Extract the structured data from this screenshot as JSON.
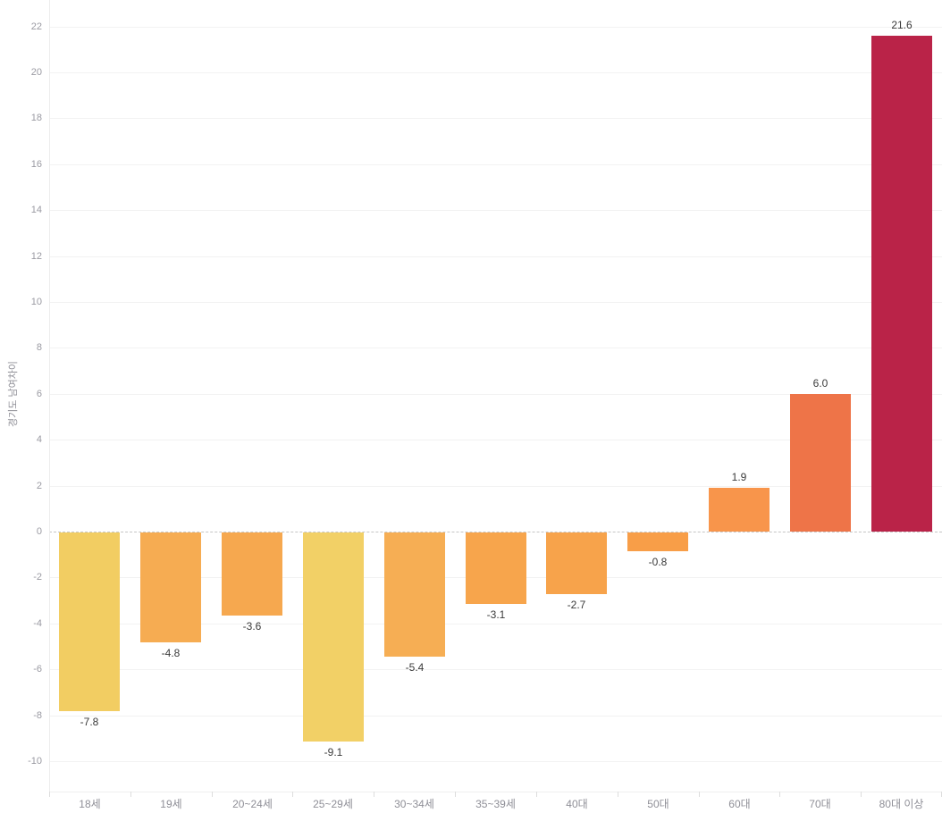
{
  "chart_data": {
    "type": "bar",
    "categories": [
      "18세",
      "19세",
      "20~24세",
      "25~29세",
      "30~34세",
      "35~39세",
      "40대",
      "50대",
      "60대",
      "70대",
      "80대 이상"
    ],
    "values": [
      -7.8,
      -4.8,
      -3.6,
      -9.1,
      -5.4,
      -3.1,
      -2.7,
      -0.8,
      1.9,
      6.0,
      21.6
    ],
    "value_labels": [
      "-7.8",
      "-4.8",
      "-3.6",
      "-9.1",
      "-5.4",
      "-3.1",
      "-2.7",
      "-0.8",
      "1.9",
      "6.0",
      "21.6"
    ],
    "bar_colors": [
      "#F2CD62",
      "#F6AC52",
      "#F6A84F",
      "#F2D066",
      "#F6AE54",
      "#F7A54C",
      "#F7A34B",
      "#F89E48",
      "#F8954B",
      "#EE7448",
      "#BA2348"
    ],
    "title": "",
    "xlabel": "",
    "ylabel": "경기도 남여차이",
    "ylim": [
      -10,
      22
    ],
    "ytick_step": 2,
    "yticks": [
      22,
      20,
      18,
      16,
      14,
      12,
      10,
      8,
      6,
      4,
      2,
      0,
      -2,
      -4,
      -6,
      -8,
      -10
    ],
    "grid": "on",
    "legend": "none",
    "colors": {
      "background": "#FFFFFF",
      "gridline": "#F2F2F2",
      "zero_line_dashed": "#C6C6C6",
      "axis_line": "#EDEDED",
      "ytick_text": "#9A9AA2",
      "xtick_text": "#8F8F97",
      "data_label_text": "#3A3A3A"
    }
  }
}
